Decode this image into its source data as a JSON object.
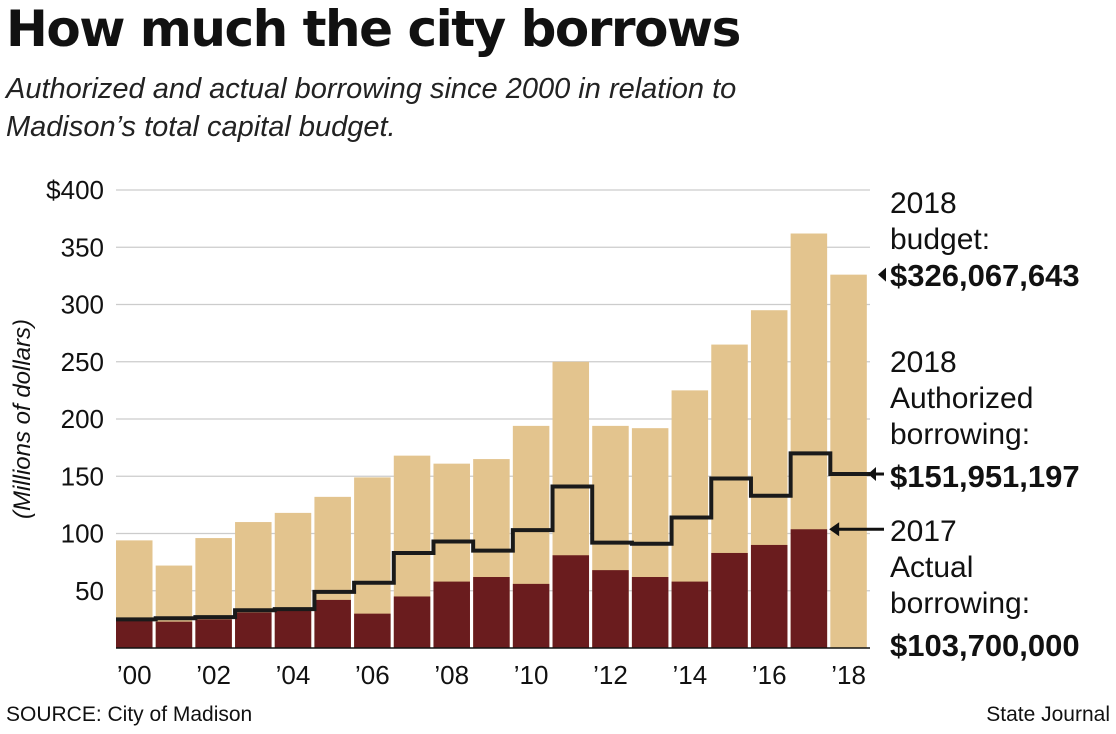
{
  "header": {
    "title": "How much the city borrows",
    "subtitle": "Authorized and actual borrowing since 2000 in relation to Madison’s total capital budget."
  },
  "footer": {
    "source": "SOURCE: City of Madison",
    "credit": "State Journal"
  },
  "colors": {
    "budget": "#e3c48e",
    "actual": "#6a1c1e",
    "authorized_line": "#1a1a1a",
    "grid": "#cccccc"
  },
  "chart_data": {
    "type": "bar",
    "title": "How much the city borrows",
    "ylabel": "(Millions of dollars)",
    "xlabel": "",
    "ylim": [
      0,
      400
    ],
    "yticks": [
      50,
      100,
      150,
      200,
      250,
      300,
      350,
      400
    ],
    "ytick_labels": [
      "50",
      "100",
      "150",
      "200",
      "250",
      "300",
      "350",
      "$400"
    ],
    "categories": [
      "2000",
      "2001",
      "2002",
      "2003",
      "2004",
      "2005",
      "2006",
      "2007",
      "2008",
      "2009",
      "2010",
      "2011",
      "2012",
      "2013",
      "2014",
      "2015",
      "2016",
      "2017",
      "2018"
    ],
    "xtick_labels": [
      "’00",
      "",
      "’02",
      "",
      "’04",
      "",
      "’06",
      "",
      "’08",
      "",
      "’10",
      "",
      "’12",
      "",
      "’14",
      "",
      "’16",
      "",
      "’18"
    ],
    "series": [
      {
        "name": "Total capital budget",
        "kind": "bar",
        "values": [
          94,
          72,
          96,
          110,
          118,
          132,
          149,
          168,
          161,
          165,
          194,
          250,
          194,
          192,
          225,
          265,
          295,
          362,
          326.07
        ]
      },
      {
        "name": "Actual borrowing",
        "kind": "bar",
        "values": [
          24,
          23,
          25,
          31,
          33,
          42,
          30,
          45,
          58,
          62,
          56,
          81,
          68,
          62,
          58,
          83,
          90,
          103.7,
          null
        ]
      },
      {
        "name": "Authorized borrowing",
        "kind": "step-line",
        "values": [
          25,
          26,
          27,
          33,
          34,
          49,
          57,
          83,
          93,
          85,
          103,
          141,
          92,
          91,
          114,
          148,
          133,
          170,
          151.95
        ]
      }
    ],
    "annotations": [
      {
        "lines": [
          "2018",
          "budget:"
        ],
        "value": "$326,067,643",
        "target_series": 0,
        "target_index": 18
      },
      {
        "lines": [
          "2018",
          "Authorized",
          "borrowing:"
        ],
        "value": "$151,951,197",
        "target_series": 2,
        "target_index": 18
      },
      {
        "lines": [
          "2017",
          "Actual",
          "borrowing:"
        ],
        "value": "$103,700,000",
        "target_series": 1,
        "target_index": 17
      }
    ]
  }
}
